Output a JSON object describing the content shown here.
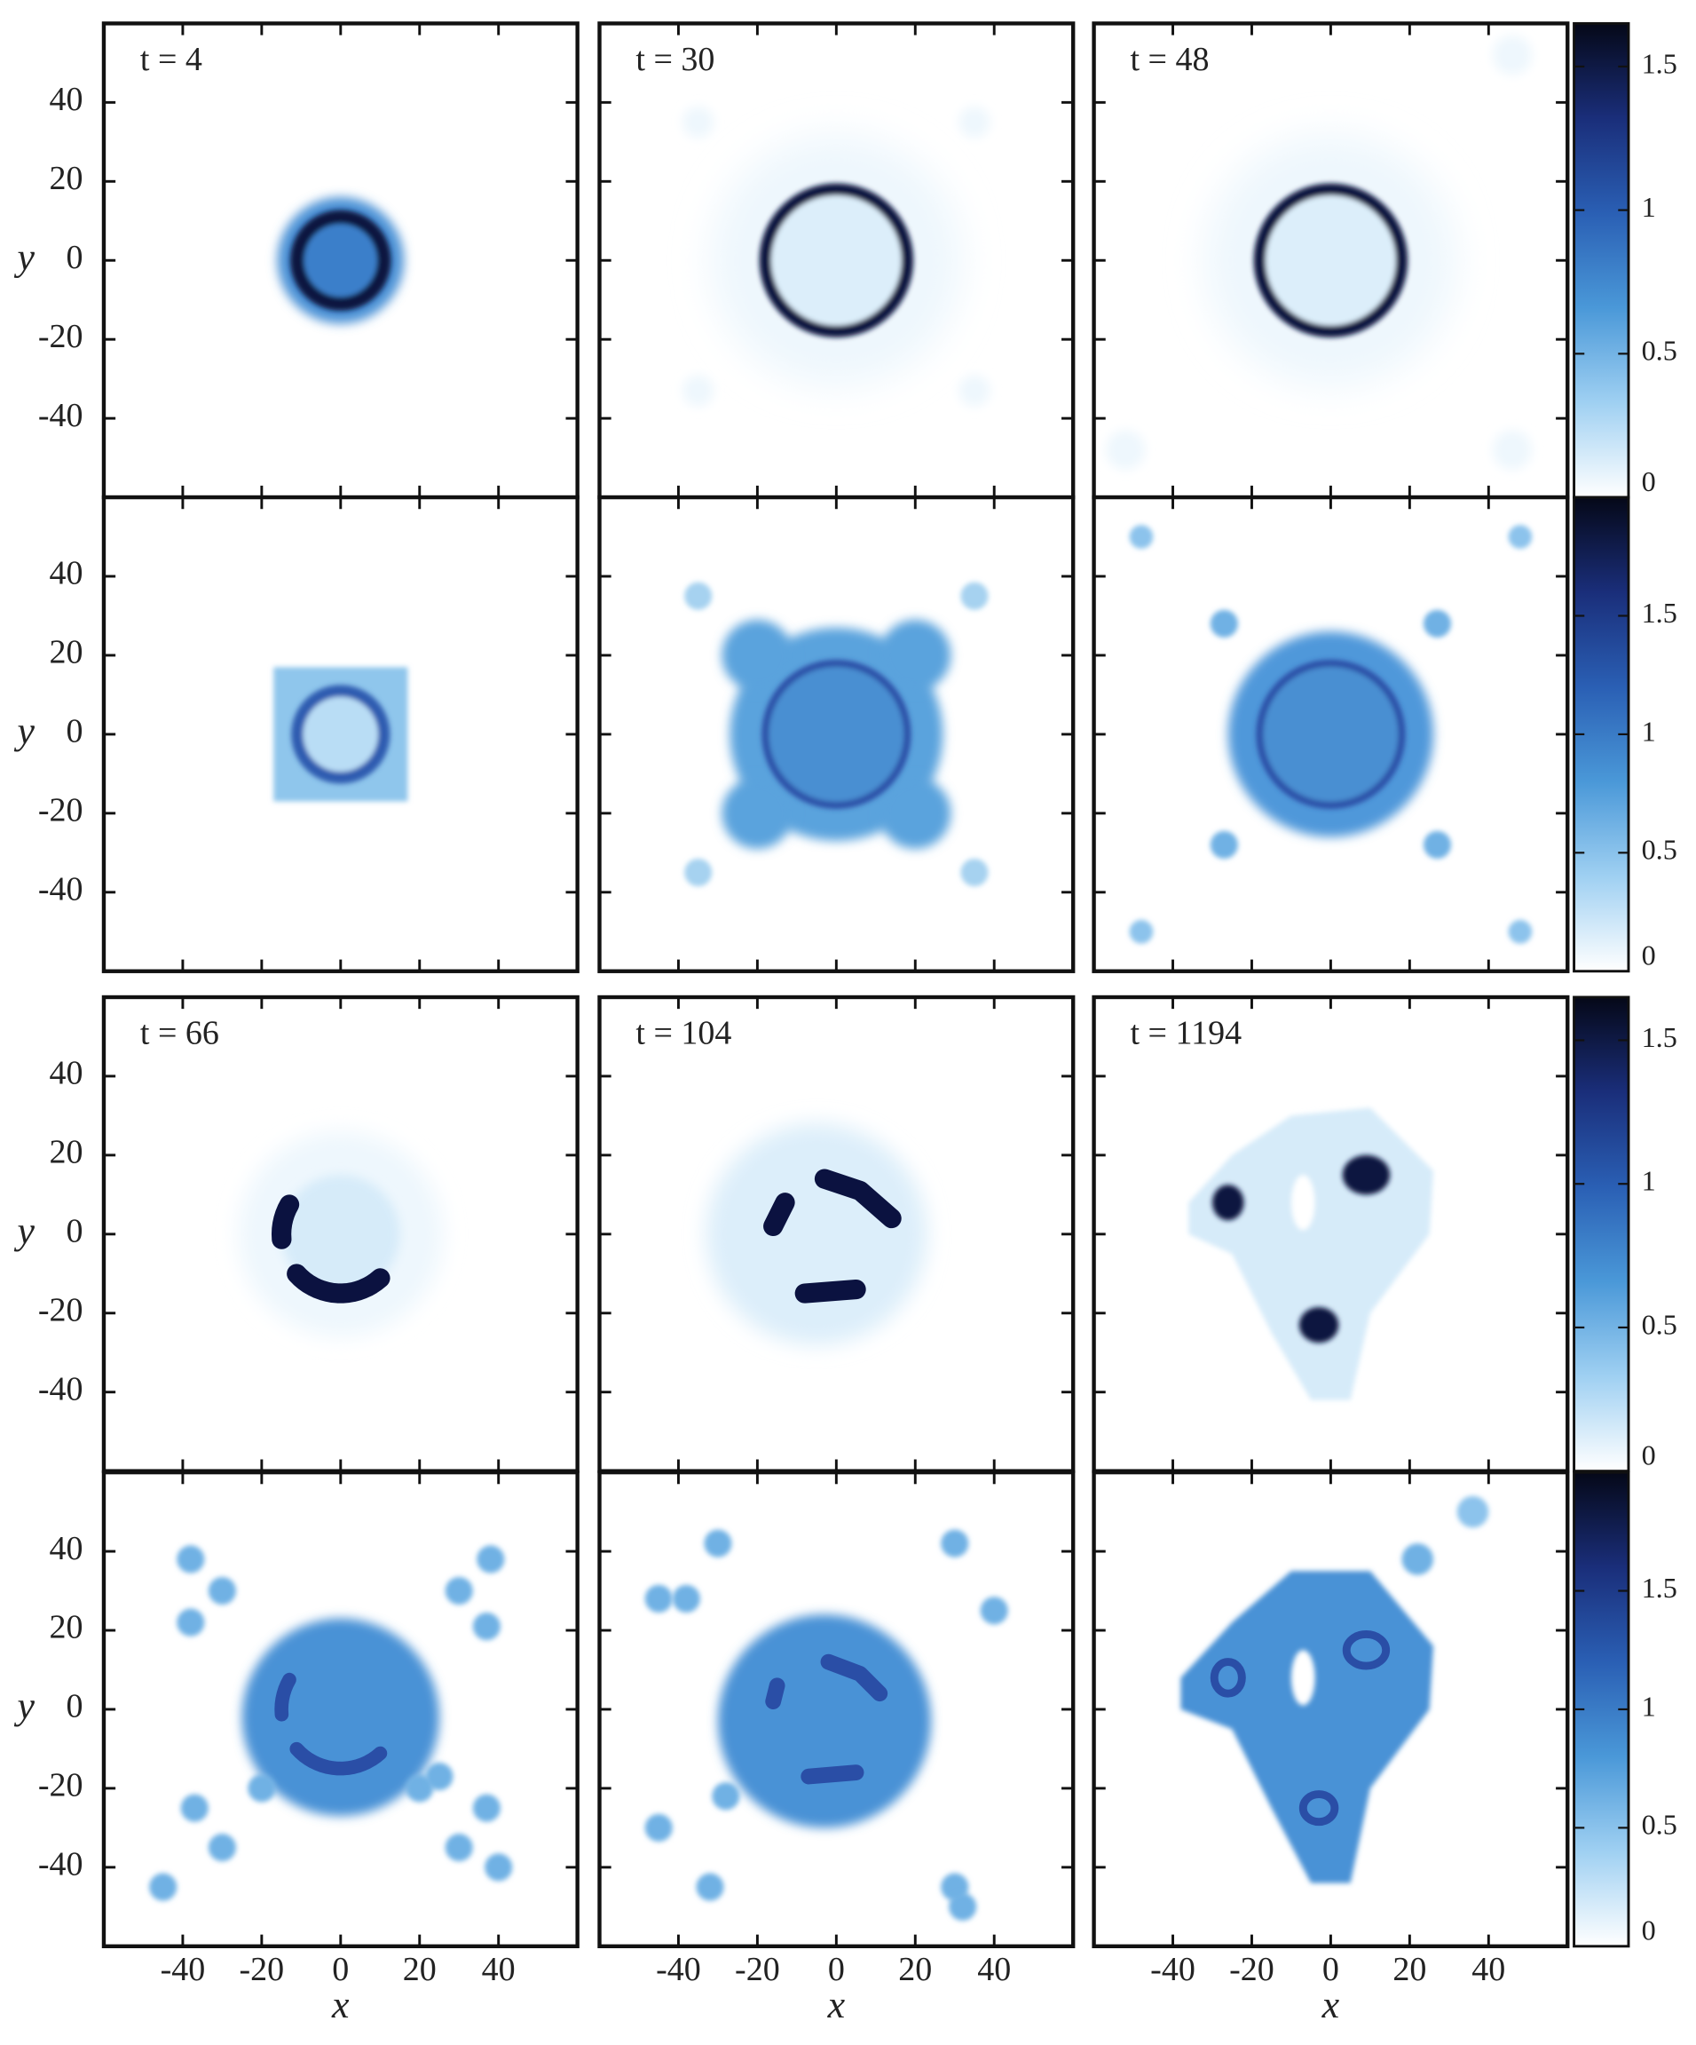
{
  "chart_data": [
    {
      "type": "heatmap",
      "annotation": "t = 4",
      "xlim": [
        -60,
        60
      ],
      "ylim": [
        -60,
        60
      ],
      "yticks": [
        -40,
        -20,
        0,
        20,
        40
      ],
      "ylabel": "y"
    },
    {
      "type": "heatmap",
      "annotation": "t = 30",
      "xlim": [
        -60,
        60
      ],
      "ylim": [
        -60,
        60
      ]
    },
    {
      "type": "heatmap",
      "annotation": "t = 48",
      "xlim": [
        -60,
        60
      ],
      "ylim": [
        -60,
        60
      ],
      "colorbar": {
        "lim": [
          0,
          1.65
        ],
        "ticks": [
          0,
          0.5,
          1,
          1.5
        ],
        "colormap": [
          "#ffffff",
          "#9fd0f2",
          "#4a98d8",
          "#2a5fb4",
          "#1a2e7a",
          "#050818"
        ]
      }
    },
    {
      "type": "heatmap",
      "xlim": [
        -60,
        60
      ],
      "ylim": [
        -60,
        60
      ],
      "yticks": [
        -40,
        -20,
        0,
        20,
        40
      ],
      "ylabel": "y"
    },
    {
      "type": "heatmap",
      "xlim": [
        -60,
        60
      ],
      "ylim": [
        -60,
        60
      ]
    },
    {
      "type": "heatmap",
      "xlim": [
        -60,
        60
      ],
      "ylim": [
        -60,
        60
      ],
      "colorbar": {
        "lim": [
          0,
          2
        ],
        "ticks": [
          0,
          0.5,
          1,
          1.5
        ],
        "colormap": [
          "#ffffff",
          "#9fd0f2",
          "#4a98d8",
          "#2a5fb4",
          "#1a2e7a",
          "#050818"
        ]
      }
    },
    {
      "type": "heatmap",
      "annotation": "t = 66",
      "xlim": [
        -60,
        60
      ],
      "ylim": [
        -60,
        60
      ],
      "yticks": [
        -40,
        -20,
        0,
        20,
        40
      ],
      "ylabel": "y"
    },
    {
      "type": "heatmap",
      "annotation": "t = 104",
      "xlim": [
        -60,
        60
      ],
      "ylim": [
        -60,
        60
      ]
    },
    {
      "type": "heatmap",
      "annotation": "t = 1194",
      "xlim": [
        -60,
        60
      ],
      "ylim": [
        -60,
        60
      ],
      "colorbar": {
        "lim": [
          0,
          1.65
        ],
        "ticks": [
          0,
          0.5,
          1,
          1.5
        ],
        "colormap": [
          "#ffffff",
          "#9fd0f2",
          "#4a98d8",
          "#2a5fb4",
          "#1a2e7a",
          "#050818"
        ]
      }
    },
    {
      "type": "heatmap",
      "xlim": [
        -60,
        60
      ],
      "ylim": [
        -60,
        60
      ],
      "xticks": [
        -40,
        -20,
        0,
        20,
        40
      ],
      "yticks": [
        -40,
        -20,
        0,
        20,
        40
      ],
      "xlabel": "x",
      "ylabel": "y"
    },
    {
      "type": "heatmap",
      "xlim": [
        -60,
        60
      ],
      "ylim": [
        -60,
        60
      ],
      "xticks": [
        -40,
        -20,
        0,
        20,
        40
      ],
      "xlabel": "x"
    },
    {
      "type": "heatmap",
      "xlim": [
        -60,
        60
      ],
      "ylim": [
        -60,
        60
      ],
      "xticks": [
        -40,
        -20,
        0,
        20,
        40
      ],
      "xlabel": "x",
      "colorbar": {
        "lim": [
          0,
          2
        ],
        "ticks": [
          0,
          0.5,
          1,
          1.5
        ],
        "colormap": [
          "#ffffff",
          "#9fd0f2",
          "#4a98d8",
          "#2a5fb4",
          "#1a2e7a",
          "#050818"
        ]
      }
    }
  ]
}
